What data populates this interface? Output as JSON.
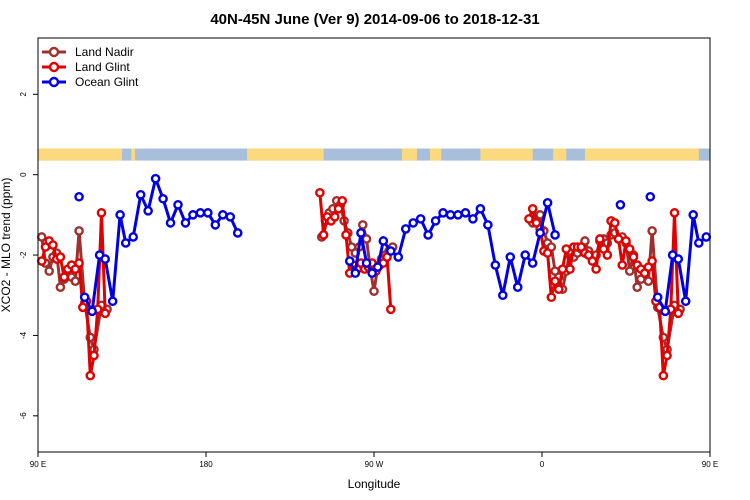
{
  "chart_data": {
    "type": "line",
    "title": "40N-45N June (Ver 9)   2014-09-06 to 2018-12-31",
    "xlabel": "Longitude",
    "ylabel": "XCO2 - MLO trend (ppm)",
    "xlim": [
      90,
      450
    ],
    "ylim": [
      -6.9,
      3.4
    ],
    "x_ticks": [
      {
        "value": 90,
        "label": "90 E"
      },
      {
        "value": 180,
        "label": "180"
      },
      {
        "value": 270,
        "label": "90 W"
      },
      {
        "value": 360,
        "label": "0"
      },
      {
        "value": 450,
        "label": "90 E"
      },
      {
        "value": 540,
        "label": "180"
      }
    ],
    "y_ticks": [
      {
        "value": 2,
        "label": "2"
      },
      {
        "value": 0,
        "label": "0"
      },
      {
        "value": -2,
        "label": "-2"
      },
      {
        "value": -4,
        "label": "-4"
      },
      {
        "value": -6,
        "label": "-6"
      }
    ],
    "grid": false,
    "legend": {
      "position": "top-left"
    },
    "land_mask_band": {
      "y_range": [
        0.35,
        0.65
      ],
      "colors": {
        "land": "#fbd97e",
        "ocean": "#a8bfdc"
      },
      "land_intervals": [
        [
          90,
          135
        ],
        [
          140,
          142
        ],
        [
          202,
          243
        ],
        [
          285,
          293
        ],
        [
          300,
          306
        ],
        [
          327,
          355
        ],
        [
          366,
          373
        ],
        [
          383,
          444
        ],
        [
          450,
          495
        ],
        [
          500,
          502
        ],
        [
          562,
          603
        ]
      ]
    },
    "series": [
      {
        "name": "Land Nadir",
        "color": "#a0302e",
        "points": [
          [
            92,
            -1.55
          ],
          [
            94,
            -2.2
          ],
          [
            96,
            -2.4
          ],
          [
            98,
            -2.05
          ],
          [
            100,
            -1.95
          ],
          [
            102,
            -2.8
          ],
          [
            104,
            -2.6
          ],
          [
            106,
            -2.4
          ],
          [
            108,
            -2.55
          ],
          [
            110,
            -2.65
          ],
          [
            112,
            -1.4
          ],
          [
            115,
            -3.2
          ],
          [
            118,
            -4.05
          ],
          [
            120,
            -4.35
          ],
          [
            124,
            -3.25
          ],
          [
            127,
            -3.35
          ],
          [
            242,
            -1.55
          ],
          [
            244,
            -1.15
          ],
          [
            246,
            -0.95
          ],
          [
            248,
            -0.85
          ],
          [
            250,
            -0.65
          ],
          [
            252,
            -0.75
          ],
          [
            254,
            -1.15
          ],
          [
            256,
            -1.45
          ],
          [
            258,
            -1.8
          ],
          [
            260,
            -1.95
          ],
          [
            262,
            -1.8
          ],
          [
            264,
            -1.25
          ],
          [
            266,
            -1.6
          ],
          [
            268,
            -2.35
          ],
          [
            270,
            -2.9
          ],
          [
            272,
            -2.3
          ],
          [
            274,
            -2.1
          ],
          [
            276,
            -2.0
          ],
          [
            278,
            -1.9
          ],
          [
            280,
            -1.8
          ],
          [
            355,
            -1.2
          ],
          [
            357,
            -1.05
          ],
          [
            359,
            -1.0
          ],
          [
            361,
            -1.4
          ],
          [
            363,
            -1.7
          ],
          [
            365,
            -1.8
          ],
          [
            367,
            -2.4
          ],
          [
            369,
            -2.55
          ],
          [
            371,
            -2.85
          ],
          [
            373,
            -2.4
          ],
          [
            375,
            -1.9
          ],
          [
            377,
            -2.05
          ],
          [
            379,
            -1.95
          ],
          [
            381,
            -1.85
          ],
          [
            383,
            -1.65
          ],
          [
            385,
            -1.9
          ],
          [
            387,
            -2.1
          ],
          [
            389,
            -2.0
          ],
          [
            391,
            -1.65
          ],
          [
            393,
            -1.6
          ],
          [
            395,
            -1.7
          ],
          [
            397,
            -1.5
          ],
          [
            399,
            -1.45
          ],
          [
            401,
            -1.6
          ],
          [
            403,
            -1.55
          ],
          [
            405,
            -1.7
          ],
          [
            407,
            -2.4
          ],
          [
            409,
            -2.0
          ],
          [
            411,
            -2.8
          ],
          [
            413,
            -2.6
          ],
          [
            415,
            -2.4
          ],
          [
            417,
            -2.65
          ],
          [
            419,
            -1.4
          ],
          [
            422,
            -3.3
          ],
          [
            425,
            -4.05
          ],
          [
            427,
            -4.35
          ],
          [
            431,
            -3.25
          ],
          [
            434,
            -3.35
          ]
        ]
      },
      {
        "name": "Land Glint",
        "color": "#e00000",
        "points": [
          [
            92,
            -2.15
          ],
          [
            94,
            -1.8
          ],
          [
            96,
            -1.65
          ],
          [
            98,
            -1.75
          ],
          [
            100,
            -2.1
          ],
          [
            102,
            -2.05
          ],
          [
            104,
            -2.55
          ],
          [
            106,
            -2.35
          ],
          [
            108,
            -2.25
          ],
          [
            110,
            -2.35
          ],
          [
            112,
            -2.2
          ],
          [
            114,
            -3.3
          ],
          [
            116,
            -3.15
          ],
          [
            118,
            -5.0
          ],
          [
            120,
            -4.5
          ],
          [
            122,
            -3.35
          ],
          [
            124,
            -0.95
          ],
          [
            126,
            -3.45
          ],
          [
            241,
            -0.45
          ],
          [
            243,
            -1.5
          ],
          [
            245,
            -1.05
          ],
          [
            247,
            -1.15
          ],
          [
            249,
            -1.05
          ],
          [
            251,
            -0.85
          ],
          [
            253,
            -0.65
          ],
          [
            255,
            -1.5
          ],
          [
            257,
            -2.45
          ],
          [
            259,
            -2.25
          ],
          [
            261,
            -2.35
          ],
          [
            263,
            -2.2
          ],
          [
            265,
            -2.35
          ],
          [
            267,
            -2.3
          ],
          [
            269,
            -2.2
          ],
          [
            271,
            -2.4
          ],
          [
            273,
            -2.25
          ],
          [
            275,
            -2.2
          ],
          [
            277,
            -2.05
          ],
          [
            279,
            -3.35
          ],
          [
            353,
            -1.1
          ],
          [
            355,
            -0.85
          ],
          [
            357,
            -1.2
          ],
          [
            359,
            -1.35
          ],
          [
            361,
            -1.9
          ],
          [
            363,
            -1.95
          ],
          [
            365,
            -3.05
          ],
          [
            367,
            -2.65
          ],
          [
            369,
            -2.85
          ],
          [
            371,
            -2.35
          ],
          [
            373,
            -1.85
          ],
          [
            375,
            -2.35
          ],
          [
            377,
            -1.8
          ],
          [
            379,
            -1.8
          ],
          [
            381,
            -1.8
          ],
          [
            383,
            -1.95
          ],
          [
            385,
            -2.0
          ],
          [
            387,
            -2.15
          ],
          [
            389,
            -2.35
          ],
          [
            391,
            -1.6
          ],
          [
            393,
            -1.85
          ],
          [
            395,
            -2.0
          ],
          [
            397,
            -1.15
          ],
          [
            399,
            -1.2
          ],
          [
            401,
            -1.6
          ],
          [
            403,
            -2.25
          ],
          [
            405,
            -1.65
          ],
          [
            407,
            -1.85
          ],
          [
            409,
            -2.05
          ],
          [
            411,
            -2.25
          ],
          [
            413,
            -2.35
          ],
          [
            415,
            -2.45
          ],
          [
            417,
            -2.3
          ],
          [
            419,
            -2.15
          ],
          [
            421,
            -3.15
          ],
          [
            423,
            -3.3
          ],
          [
            425,
            -5.0
          ],
          [
            427,
            -4.5
          ],
          [
            429,
            -3.35
          ],
          [
            431,
            -0.95
          ],
          [
            433,
            -3.45
          ]
        ]
      },
      {
        "name": "Ocean Glint",
        "color": "#0000e0",
        "points": [
          [
            115,
            -3.05
          ],
          [
            119,
            -3.4
          ],
          [
            123,
            -2.0
          ],
          [
            126,
            -2.1
          ],
          [
            130,
            -3.15
          ],
          [
            134,
            -1.0
          ],
          [
            137,
            -1.7
          ],
          [
            141,
            -1.55
          ],
          [
            145,
            -0.5
          ],
          [
            149,
            -0.9
          ],
          [
            153,
            -0.1
          ],
          [
            157,
            -0.6
          ],
          [
            161,
            -1.2
          ],
          [
            165,
            -0.75
          ],
          [
            169,
            -1.2
          ],
          [
            173,
            -1.0
          ],
          [
            177,
            -0.95
          ],
          [
            181,
            -0.95
          ],
          [
            185,
            -1.25
          ],
          [
            189,
            -1.0
          ],
          [
            193,
            -1.05
          ],
          [
            197,
            -1.45
          ],
          [
            257,
            -2.15
          ],
          [
            260,
            -2.45
          ],
          [
            263,
            -1.45
          ],
          [
            266,
            -2.2
          ],
          [
            269,
            -2.45
          ],
          [
            272,
            -2.3
          ],
          [
            275,
            -1.65
          ],
          [
            279,
            -1.9
          ],
          [
            283,
            -2.05
          ],
          [
            287,
            -1.35
          ],
          [
            291,
            -1.2
          ],
          [
            295,
            -1.1
          ],
          [
            299,
            -1.5
          ],
          [
            303,
            -1.15
          ],
          [
            307,
            -0.95
          ],
          [
            311,
            -1.0
          ],
          [
            315,
            -1.0
          ],
          [
            319,
            -0.95
          ],
          [
            323,
            -1.1
          ],
          [
            327,
            -0.85
          ],
          [
            331,
            -1.25
          ],
          [
            335,
            -2.25
          ],
          [
            339,
            -3.0
          ],
          [
            343,
            -2.05
          ],
          [
            347,
            -2.8
          ],
          [
            351,
            -2.0
          ],
          [
            355,
            -2.2
          ],
          [
            359,
            -1.45
          ],
          [
            363,
            -0.7
          ],
          [
            367,
            -1.5
          ],
          [
            422,
            -3.05
          ],
          [
            426,
            -3.4
          ],
          [
            430,
            -2.0
          ],
          [
            433,
            -2.1
          ],
          [
            437,
            -3.15
          ],
          [
            441,
            -1.0
          ],
          [
            444,
            -1.7
          ],
          [
            448,
            -1.55
          ],
          [
            452,
            -0.5
          ],
          [
            456,
            -0.9
          ],
          [
            460,
            -0.1
          ],
          [
            464,
            -0.6
          ],
          [
            468,
            -1.2
          ]
        ],
        "isolated_points": [
          [
            112,
            -0.55
          ],
          [
            402,
            -0.75
          ],
          [
            418,
            -0.55
          ]
        ]
      }
    ]
  }
}
